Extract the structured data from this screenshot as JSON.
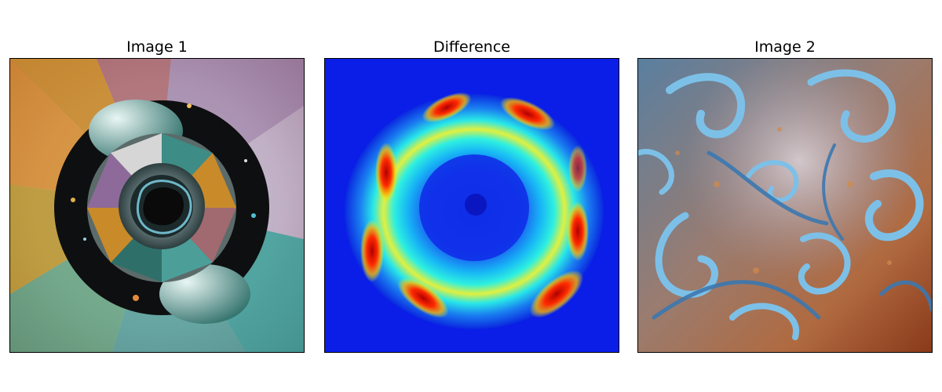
{
  "figure": {
    "panels": [
      {
        "title": "Image 1"
      },
      {
        "title": "Difference"
      },
      {
        "title": "Image 2"
      }
    ]
  }
}
